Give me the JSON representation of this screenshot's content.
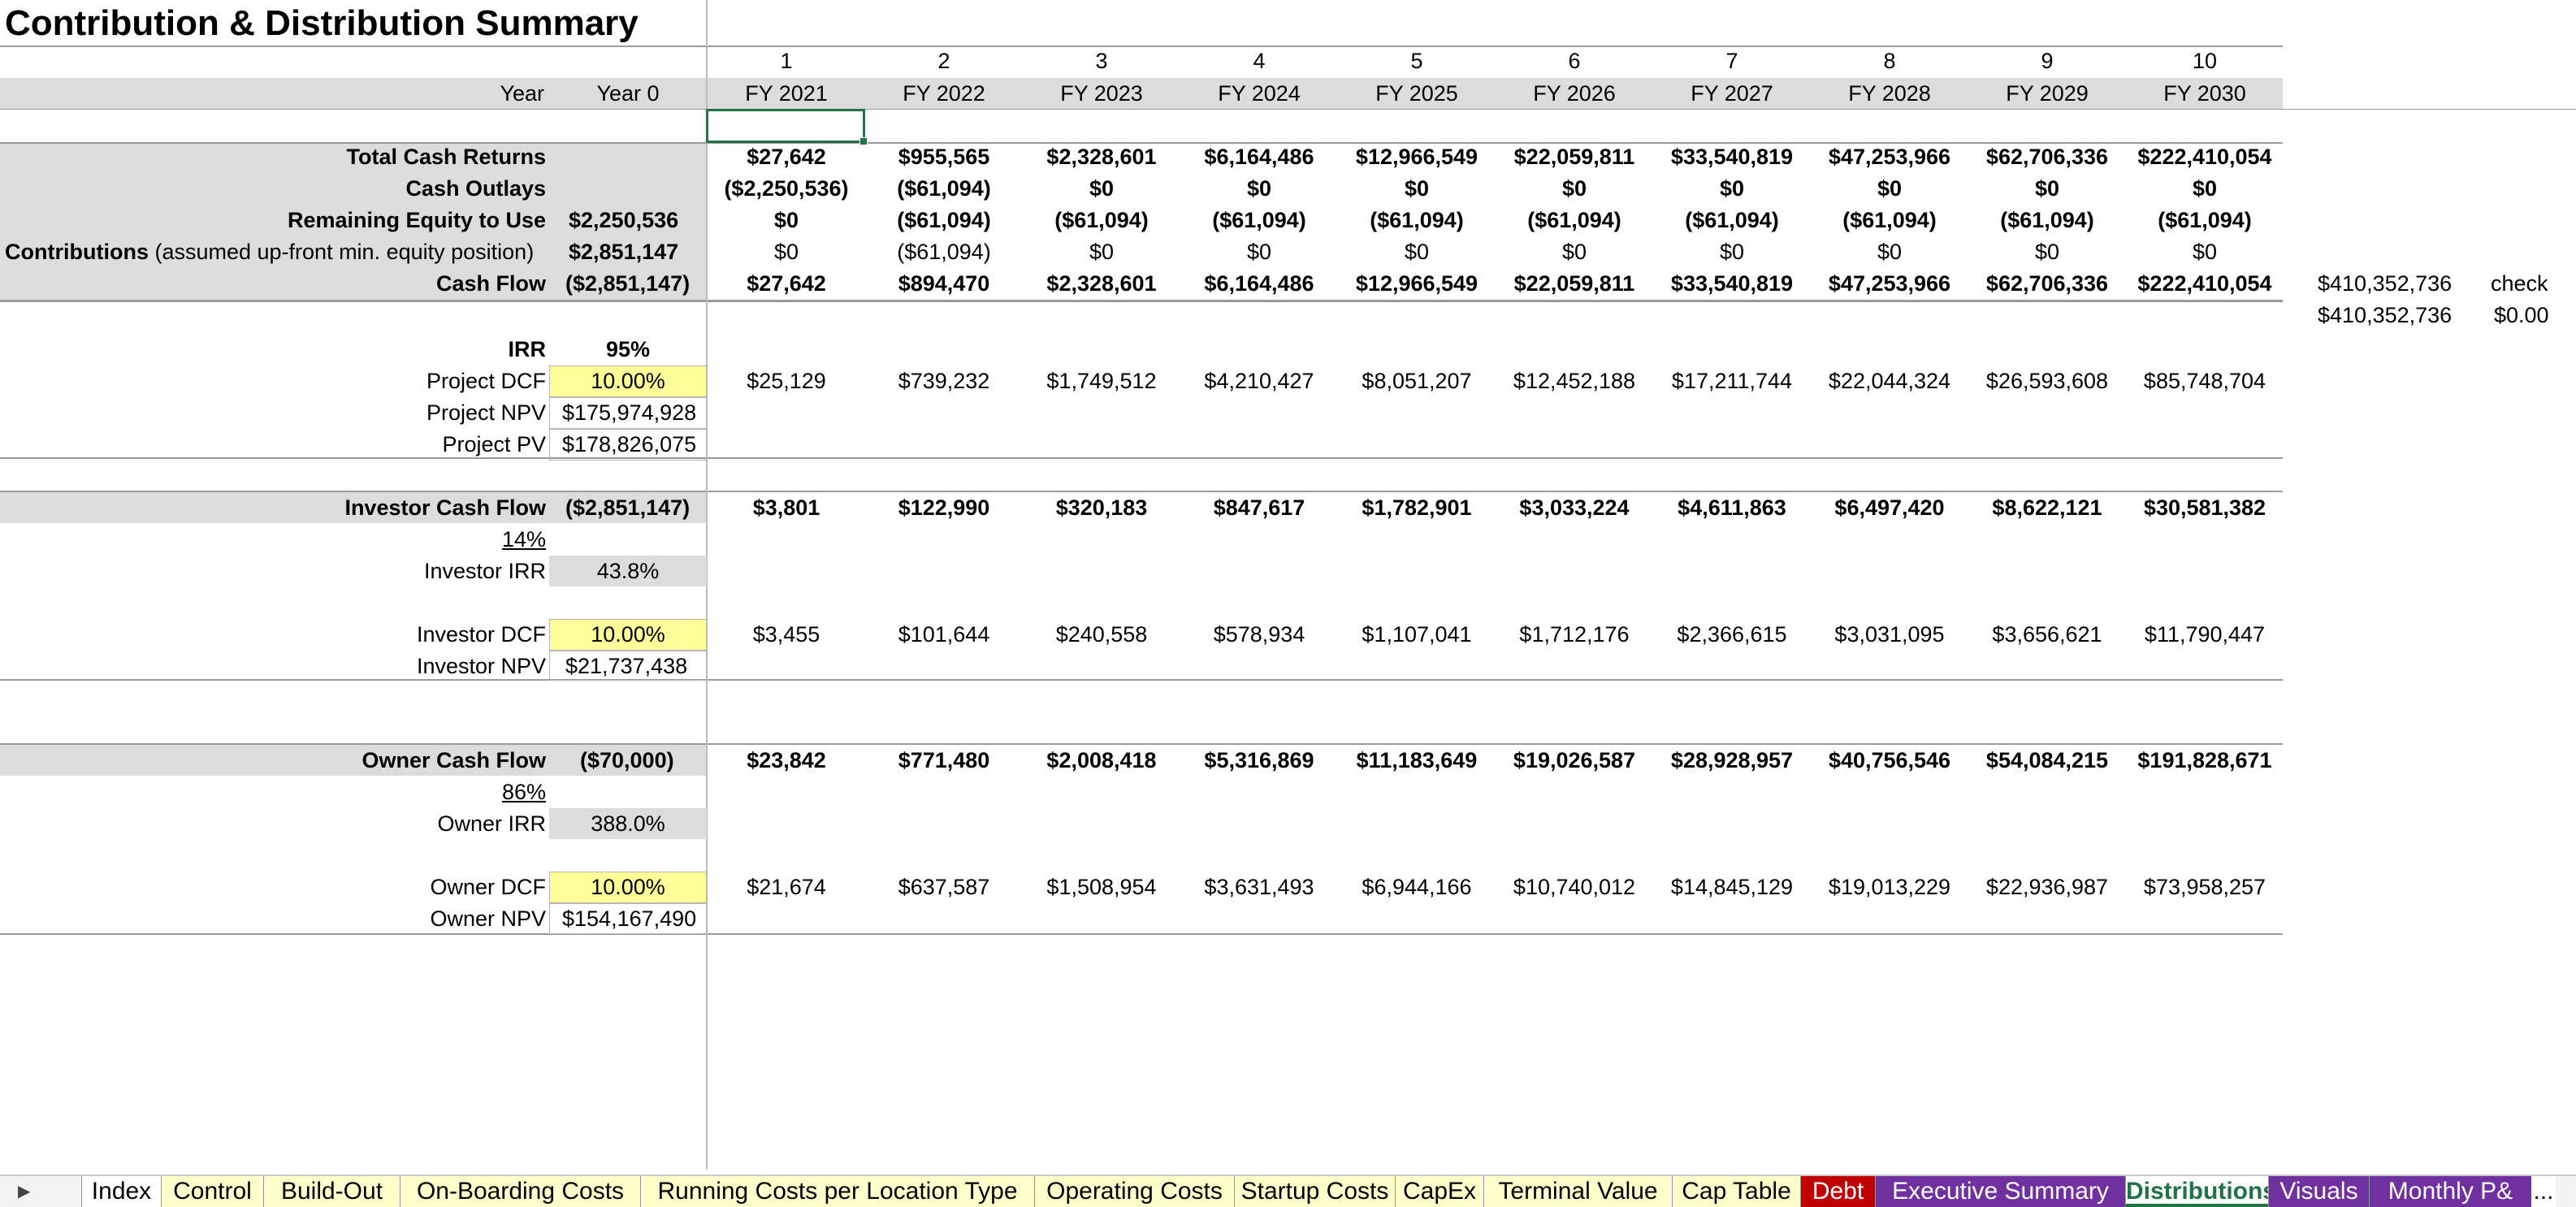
{
  "title": "Contribution & Distribution Summary",
  "period_numbers": [
    "1",
    "2",
    "3",
    "4",
    "5",
    "6",
    "7",
    "8",
    "9",
    "10"
  ],
  "header": {
    "year_label": "Year",
    "year0_label": "Year 0"
  },
  "fiscal_years": [
    "FY 2021",
    "FY 2022",
    "FY 2023",
    "FY 2024",
    "FY 2025",
    "FY 2026",
    "FY 2027",
    "FY 2028",
    "FY 2029",
    "FY 2030"
  ],
  "rows": {
    "total_cash_returns": {
      "label": "Total Cash Returns",
      "year0": "",
      "values": [
        "$27,642",
        "$955,565",
        "$2,328,601",
        "$6,164,486",
        "$12,966,549",
        "$22,059,811",
        "$33,540,819",
        "$47,253,966",
        "$62,706,336",
        "$222,410,054"
      ]
    },
    "cash_outlays": {
      "label": "Cash Outlays",
      "year0": "",
      "values": [
        "($2,250,536)",
        "($61,094)",
        "$0",
        "$0",
        "$0",
        "$0",
        "$0",
        "$0",
        "$0",
        "$0"
      ]
    },
    "remaining_equity": {
      "label": "Remaining Equity to Use",
      "year0": "$2,250,536",
      "values": [
        "$0",
        "($61,094)",
        "($61,094)",
        "($61,094)",
        "($61,094)",
        "($61,094)",
        "($61,094)",
        "($61,094)",
        "($61,094)",
        "($61,094)"
      ]
    },
    "contributions": {
      "label_bold": "Contributions",
      "label_note": " (assumed up-front min. equity position)",
      "year0": "$2,851,147",
      "values": [
        "$0",
        "($61,094)",
        "$0",
        "$0",
        "$0",
        "$0",
        "$0",
        "$0",
        "$0",
        "$0"
      ]
    },
    "cash_flow": {
      "label": "Cash Flow",
      "year0": "($2,851,147)",
      "values": [
        "$27,642",
        "$894,470",
        "$2,328,601",
        "$6,164,486",
        "$12,966,549",
        "$22,059,811",
        "$33,540,819",
        "$47,253,966",
        "$62,706,336",
        "$222,410,054"
      ]
    }
  },
  "check": {
    "total_1": "$410,352,736",
    "label": "check",
    "total_2": "$410,352,736",
    "difference": "$0.00"
  },
  "project": {
    "irr_label": "IRR",
    "irr_value": "95%",
    "dcf_label": "Project DCF",
    "dcf_rate": "10.00%",
    "dcf_values": [
      "$25,129",
      "$739,232",
      "$1,749,512",
      "$4,210,427",
      "$8,051,207",
      "$12,452,188",
      "$17,211,744",
      "$22,044,324",
      "$26,593,608",
      "$85,748,704"
    ],
    "npv_label": "Project NPV",
    "npv_value": "$175,974,928",
    "pv_label": "Project PV",
    "pv_value": "$178,826,075"
  },
  "investor": {
    "cash_flow_label": "Investor Cash Flow",
    "year0": "($2,851,147)",
    "values": [
      "$3,801",
      "$122,990",
      "$320,183",
      "$847,617",
      "$1,782,901",
      "$3,033,224",
      "$4,611,863",
      "$6,497,420",
      "$8,622,121",
      "$30,581,382"
    ],
    "share": "14%",
    "irr_label": "Investor IRR",
    "irr_value": "43.8%",
    "dcf_label": "Investor DCF",
    "dcf_rate": "10.00%",
    "dcf_values": [
      "$3,455",
      "$101,644",
      "$240,558",
      "$578,934",
      "$1,107,041",
      "$1,712,176",
      "$2,366,615",
      "$3,031,095",
      "$3,656,621",
      "$11,790,447"
    ],
    "npv_label": "Investor NPV",
    "npv_value": "$21,737,438"
  },
  "owner": {
    "cash_flow_label": "Owner Cash Flow",
    "year0": "($70,000)",
    "values": [
      "$23,842",
      "$771,480",
      "$2,008,418",
      "$5,316,869",
      "$11,183,649",
      "$19,026,587",
      "$28,928,957",
      "$40,756,546",
      "$54,084,215",
      "$191,828,671"
    ],
    "share": "86%",
    "irr_label": "Owner IRR",
    "irr_value": "388.0%",
    "dcf_label": "Owner DCF",
    "dcf_rate": "10.00%",
    "dcf_values": [
      "$21,674",
      "$637,587",
      "$1,508,954",
      "$3,631,493",
      "$6,944,166",
      "$10,740,012",
      "$14,845,129",
      "$19,013,229",
      "$22,936,987",
      "$73,958,257"
    ],
    "npv_label": "Owner NPV",
    "npv_value": "$154,167,490"
  },
  "tabs": [
    {
      "label": "Index",
      "style": "white"
    },
    {
      "label": "Control",
      "style": "light"
    },
    {
      "label": "Build-Out",
      "style": "light"
    },
    {
      "label": "On-Boarding Costs",
      "style": "light"
    },
    {
      "label": "Running Costs per Location Type",
      "style": "light"
    },
    {
      "label": "Operating Costs",
      "style": "light"
    },
    {
      "label": "Startup Costs",
      "style": "light"
    },
    {
      "label": "CapEx",
      "style": "light"
    },
    {
      "label": "Terminal Value",
      "style": "light"
    },
    {
      "label": "Cap Table",
      "style": "light"
    },
    {
      "label": "Debt",
      "style": "red"
    },
    {
      "label": "Executive Summary",
      "style": "purple"
    },
    {
      "label": "Distributions",
      "style": "active"
    },
    {
      "label": "Visuals",
      "style": "purple"
    },
    {
      "label": "Monthly P&",
      "style": "purple"
    }
  ],
  "tab_more": "...",
  "colors": {
    "accent": "#217346",
    "input_fill": "#ffff99",
    "band": "#dcdcdc",
    "debt_tab": "#c00000",
    "summary_tab": "#7030a0"
  }
}
